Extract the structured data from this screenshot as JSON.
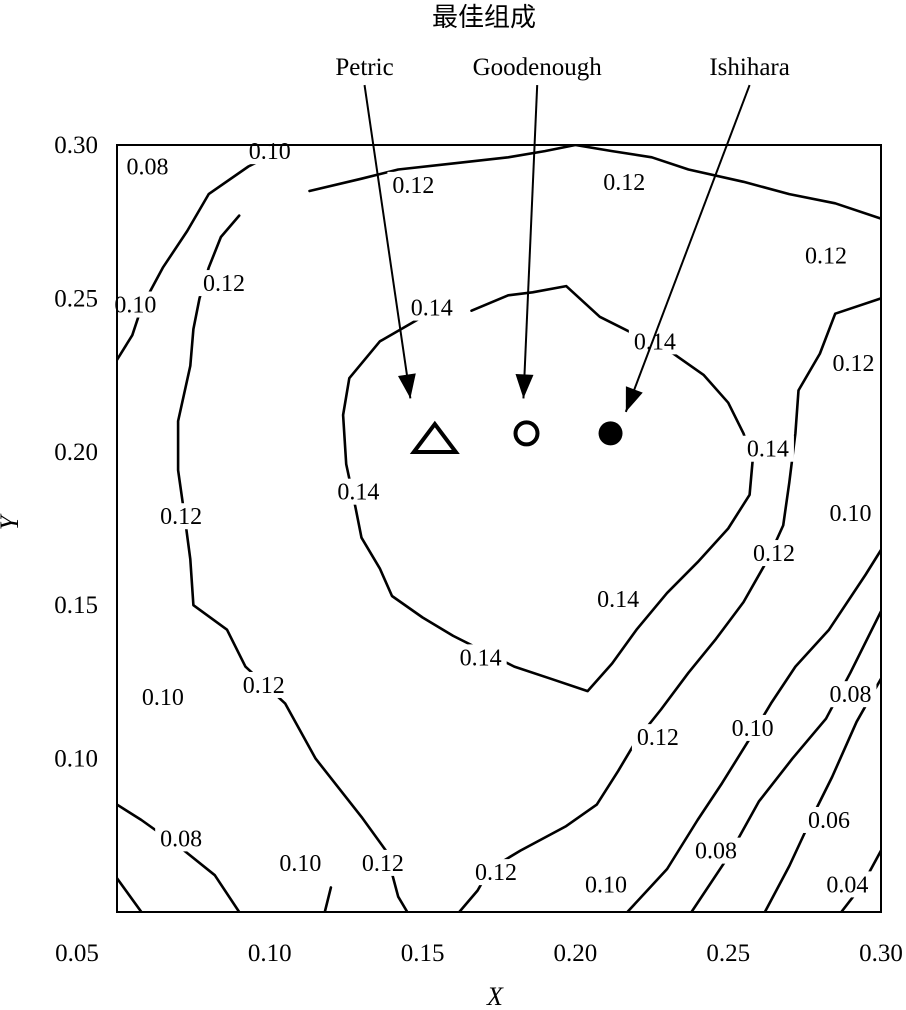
{
  "chart_data": {
    "type": "contour",
    "title": "最佳组成",
    "xlabel": "X",
    "ylabel": "Y",
    "xlim": [
      0.05,
      0.3
    ],
    "ylim": [
      0.05,
      0.3
    ],
    "xticks": [
      "0.05",
      "0.10",
      "0.15",
      "0.20",
      "0.25",
      "0.30"
    ],
    "yticks": [
      "0.10",
      "0.15",
      "0.20",
      "0.25",
      "0.30"
    ],
    "grid": false,
    "contours": [
      {
        "level": "0.04",
        "lines": [
          [
            [
              0.287,
              0.05
            ],
            [
              0.294,
              0.059
            ],
            [
              0.3,
              0.07
            ]
          ]
        ]
      },
      {
        "level": "0.06",
        "lines": [
          [
            [
              0.262,
              0.05
            ],
            [
              0.27,
              0.065
            ],
            [
              0.277,
              0.08
            ],
            [
              0.284,
              0.094
            ],
            [
              0.292,
              0.112
            ],
            [
              0.3,
              0.126
            ]
          ]
        ]
      },
      {
        "level": "0.08",
        "lines": [
          [
            [
              0.058,
              0.05
            ],
            [
              0.05,
              0.061
            ]
          ],
          [
            [
              0.238,
              0.05
            ],
            [
              0.25,
              0.068
            ],
            [
              0.26,
              0.086
            ],
            [
              0.271,
              0.1
            ],
            [
              0.282,
              0.113
            ],
            [
              0.29,
              0.128
            ],
            [
              0.3,
              0.148
            ]
          ]
        ]
      },
      {
        "level": "0.10",
        "lines": [
          [
            [
              0.05,
              0.085
            ],
            [
              0.058,
              0.08
            ],
            [
              0.072,
              0.07
            ],
            [
              0.082,
              0.062
            ],
            [
              0.09,
              0.05
            ]
          ],
          [
            [
              0.05,
              0.23
            ],
            [
              0.055,
              0.238
            ],
            [
              0.058,
              0.247
            ],
            [
              0.065,
              0.26
            ],
            [
              0.073,
              0.272
            ],
            [
              0.08,
              0.284
            ],
            [
              0.093,
              0.293
            ],
            [
              0.099,
              0.296
            ]
          ],
          [
            [
              0.05,
              0.301
            ],
            [
              0.055,
              0.306
            ]
          ],
          [
            [
              0.118,
              0.05
            ],
            [
              0.12,
              0.058
            ]
          ],
          [
            [
              0.217,
              0.05
            ],
            [
              0.23,
              0.064
            ],
            [
              0.24,
              0.08
            ],
            [
              0.248,
              0.092
            ],
            [
              0.258,
              0.108
            ],
            [
              0.264,
              0.118
            ],
            [
              0.272,
              0.13
            ],
            [
              0.283,
              0.142
            ],
            [
              0.295,
              0.16
            ],
            [
              0.3,
              0.168
            ]
          ]
        ]
      },
      {
        "level": "0.12",
        "lines": [
          [
            [
              0.09,
              0.277
            ],
            [
              0.084,
              0.27
            ],
            [
              0.08,
              0.26
            ],
            [
              0.077,
              0.25
            ],
            [
              0.075,
              0.24
            ],
            [
              0.074,
              0.228
            ],
            [
              0.07,
              0.21
            ],
            [
              0.07,
              0.194
            ],
            [
              0.072,
              0.18
            ],
            [
              0.074,
              0.165
            ],
            [
              0.075,
              0.15
            ],
            [
              0.086,
              0.142
            ],
            [
              0.092,
              0.13
            ],
            [
              0.105,
              0.118
            ],
            [
              0.115,
              0.1
            ],
            [
              0.13,
              0.081
            ],
            [
              0.138,
              0.07
            ],
            [
              0.142,
              0.055
            ],
            [
              0.145,
              0.05
            ]
          ],
          [
            [
              0.162,
              0.05
            ],
            [
              0.168,
              0.057
            ],
            [
              0.172,
              0.064
            ],
            [
              0.182,
              0.07
            ],
            [
              0.197,
              0.078
            ],
            [
              0.207,
              0.085
            ],
            [
              0.214,
              0.096
            ],
            [
              0.22,
              0.106
            ],
            [
              0.228,
              0.116
            ],
            [
              0.237,
              0.128
            ],
            [
              0.246,
              0.139
            ],
            [
              0.255,
              0.151
            ],
            [
              0.263,
              0.165
            ],
            [
              0.268,
              0.176
            ],
            [
              0.27,
              0.19
            ],
            [
              0.272,
              0.206
            ],
            [
              0.273,
              0.22
            ],
            [
              0.28,
              0.232
            ],
            [
              0.285,
              0.245
            ],
            [
              0.3,
              0.25
            ]
          ],
          [
            [
              0.113,
              0.285
            ],
            [
              0.13,
              0.289
            ],
            [
              0.142,
              0.292
            ],
            [
              0.16,
              0.294
            ],
            [
              0.178,
              0.296
            ],
            [
              0.19,
              0.298
            ],
            [
              0.2,
              0.3
            ],
            [
              0.212,
              0.298
            ],
            [
              0.225,
              0.296
            ],
            [
              0.237,
              0.292
            ],
            [
              0.255,
              0.288
            ],
            [
              0.27,
              0.284
            ],
            [
              0.285,
              0.281
            ],
            [
              0.3,
              0.276
            ]
          ]
        ]
      },
      {
        "level": "0.14",
        "lines": [
          [
            [
              0.166,
              0.246
            ],
            [
              0.178,
              0.251
            ],
            [
              0.186,
              0.252
            ],
            [
              0.197,
              0.254
            ],
            [
              0.208,
              0.244
            ],
            [
              0.22,
              0.238
            ],
            [
              0.232,
              0.232
            ],
            [
              0.242,
              0.225
            ],
            [
              0.25,
              0.216
            ],
            [
              0.255,
              0.206
            ],
            [
              0.258,
              0.197
            ],
            [
              0.257,
              0.186
            ],
            [
              0.25,
              0.175
            ],
            [
              0.24,
              0.164
            ],
            [
              0.23,
              0.154
            ],
            [
              0.22,
              0.142
            ],
            [
              0.212,
              0.131
            ],
            [
              0.204,
              0.122
            ],
            [
              0.192,
              0.126
            ],
            [
              0.18,
              0.13
            ],
            [
              0.172,
              0.134
            ],
            [
              0.16,
              0.14
            ],
            [
              0.15,
              0.146
            ],
            [
              0.14,
              0.153
            ],
            [
              0.136,
              0.162
            ],
            [
              0.13,
              0.172
            ],
            [
              0.128,
              0.182
            ],
            [
              0.125,
              0.196
            ],
            [
              0.124,
              0.212
            ],
            [
              0.126,
              0.224
            ],
            [
              0.136,
              0.236
            ],
            [
              0.15,
              0.244
            ]
          ]
        ]
      }
    ],
    "contour_labels": [
      {
        "text": "0.08",
        "x": 0.06,
        "y": 0.293
      },
      {
        "text": "0.10",
        "x": 0.1,
        "y": 0.298
      },
      {
        "text": "0.12",
        "x": 0.147,
        "y": 0.287
      },
      {
        "text": "0.12",
        "x": 0.216,
        "y": 0.288
      },
      {
        "text": "0.12",
        "x": 0.282,
        "y": 0.264
      },
      {
        "text": "0.10",
        "x": 0.056,
        "y": 0.248
      },
      {
        "text": "0.12",
        "x": 0.085,
        "y": 0.255
      },
      {
        "text": "0.14",
        "x": 0.153,
        "y": 0.247
      },
      {
        "text": "0.14",
        "x": 0.226,
        "y": 0.236
      },
      {
        "text": "0.12",
        "x": 0.291,
        "y": 0.229
      },
      {
        "text": "0.14",
        "x": 0.263,
        "y": 0.201
      },
      {
        "text": "0.14",
        "x": 0.129,
        "y": 0.187
      },
      {
        "text": "0.12",
        "x": 0.071,
        "y": 0.179
      },
      {
        "text": "0.10",
        "x": 0.29,
        "y": 0.18
      },
      {
        "text": "0.12",
        "x": 0.265,
        "y": 0.167
      },
      {
        "text": "0.14",
        "x": 0.214,
        "y": 0.152
      },
      {
        "text": "0.14",
        "x": 0.169,
        "y": 0.133
      },
      {
        "text": "0.10",
        "x": 0.065,
        "y": 0.12
      },
      {
        "text": "0.12",
        "x": 0.098,
        "y": 0.124
      },
      {
        "text": "0.08",
        "x": 0.29,
        "y": 0.121
      },
      {
        "text": "0.12",
        "x": 0.227,
        "y": 0.107
      },
      {
        "text": "0.10",
        "x": 0.258,
        "y": 0.11
      },
      {
        "text": "0.08",
        "x": 0.071,
        "y": 0.074
      },
      {
        "text": "0.10",
        "x": 0.11,
        "y": 0.066
      },
      {
        "text": "0.12",
        "x": 0.137,
        "y": 0.066
      },
      {
        "text": "0.06",
        "x": 0.283,
        "y": 0.08
      },
      {
        "text": "0.08",
        "x": 0.246,
        "y": 0.07
      },
      {
        "text": "0.12",
        "x": 0.174,
        "y": 0.063
      },
      {
        "text": "0.10",
        "x": 0.21,
        "y": 0.059
      },
      {
        "text": "0.04",
        "x": 0.289,
        "y": 0.059
      }
    ],
    "markers": [
      {
        "name": "Petric",
        "shape": "open-triangle",
        "x": 0.154,
        "y": 0.2035
      },
      {
        "name": "Goodenough",
        "shape": "open-circle",
        "x": 0.184,
        "y": 0.206
      },
      {
        "name": "Ishihara",
        "shape": "filled-circle",
        "x": 0.2115,
        "y": 0.206
      }
    ],
    "annotations": [
      {
        "text": "Petric",
        "x": 0.131,
        "y": 0.3228,
        "arrow_to": [
          0.146,
          0.2174
        ]
      },
      {
        "text": "Goodenough",
        "x": 0.1875,
        "y": 0.3228,
        "arrow_to": [
          0.183,
          0.2174
        ]
      },
      {
        "text": "Ishihara",
        "x": 0.257,
        "y": 0.3228,
        "arrow_to": [
          0.2165,
          0.213
        ]
      }
    ]
  }
}
